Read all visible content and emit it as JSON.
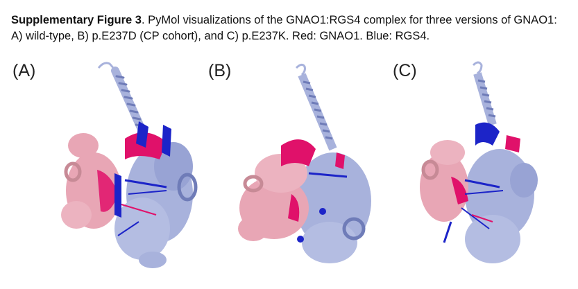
{
  "caption": {
    "label": "Supplementary Figure 3",
    "text": ". PyMol visualizations of the GNAO1:RGS4 complex for three versions of GNAO1: A) wild-type, B) p.E237D (CP cohort), and C) p.E237K. Red: GNAO1. Blue: RGS4."
  },
  "panels": [
    {
      "label": "(A)"
    },
    {
      "label": "(B)"
    },
    {
      "label": "(C)"
    }
  ],
  "colors": {
    "gnao1_pink": "#e8a6b5",
    "gnao1_dark": "#c78a96",
    "rgs4_light": "#a8b2dc",
    "rgs4_dark": "#6f7cb8",
    "magenta": "#e0116a",
    "blue": "#1c24c8"
  }
}
